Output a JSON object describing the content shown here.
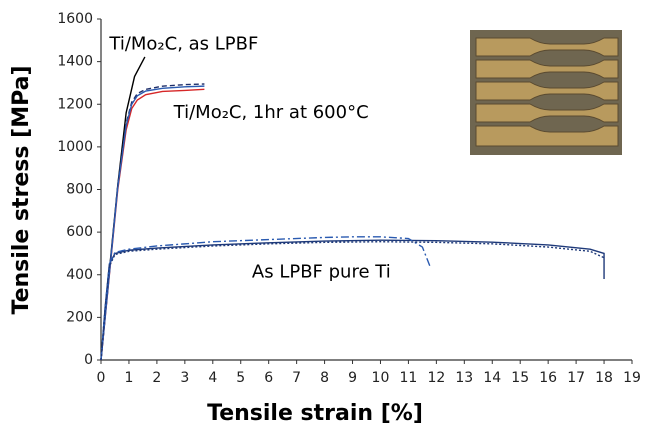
{
  "chart_data": {
    "type": "line",
    "xlabel": "Tensile strain [%]",
    "ylabel": "Tensile stress [MPa]",
    "xlim": [
      0,
      19
    ],
    "xticks": [
      0,
      1,
      2,
      3,
      4,
      5,
      6,
      7,
      8,
      9,
      10,
      11,
      12,
      13,
      14,
      15,
      16,
      17,
      18,
      19
    ],
    "ylim": [
      0,
      1600
    ],
    "yticks": [
      0,
      200,
      400,
      600,
      800,
      1000,
      1200,
      1400,
      1600
    ],
    "annotations": [
      {
        "text": "Ti/Mo₂C, as LPBF",
        "x": 0.3,
        "y": 1480
      },
      {
        "text": "Ti/Mo₂C, 1hr at 600°C",
        "x": 2.6,
        "y": 1160
      },
      {
        "text": "As LPBF pure Ti",
        "x": 5.4,
        "y": 410
      }
    ],
    "series": [
      {
        "color": "#000000",
        "style": "solid",
        "x": [
          0,
          0.3,
          0.6,
          0.9,
          1.2,
          1.57
        ],
        "values": [
          0,
          420,
          820,
          1160,
          1330,
          1422
        ]
      },
      {
        "color": "#d62728",
        "style": "solid",
        "x": [
          0,
          0.3,
          0.6,
          0.9,
          1.1,
          1.3,
          1.6,
          2.2,
          3,
          3.7
        ],
        "values": [
          0,
          400,
          800,
          1080,
          1180,
          1220,
          1245,
          1260,
          1265,
          1270
        ]
      },
      {
        "color": "#1f2f6a",
        "style": "dashed",
        "x": [
          0,
          0.3,
          0.6,
          0.9,
          1.1,
          1.3,
          1.6,
          2.2,
          3,
          3.7
        ],
        "values": [
          0,
          410,
          820,
          1110,
          1210,
          1250,
          1270,
          1285,
          1292,
          1295
        ]
      },
      {
        "color": "#2a5ab0",
        "style": "solid",
        "x": [
          0,
          0.3,
          0.6,
          0.9,
          1.1,
          1.3,
          1.6,
          2.2,
          3,
          3.7
        ],
        "values": [
          0,
          405,
          810,
          1100,
          1200,
          1240,
          1262,
          1275,
          1282,
          1285
        ]
      },
      {
        "color": "#1f3a7a",
        "style": "solid",
        "x": [
          0,
          0.15,
          0.3,
          0.5,
          1,
          2,
          4,
          6,
          8,
          10,
          12,
          14,
          16,
          17.5,
          18,
          18,
          18
        ],
        "values": [
          0,
          250,
          450,
          500,
          515,
          525,
          540,
          550,
          558,
          562,
          560,
          553,
          540,
          520,
          500,
          450,
          380
        ]
      },
      {
        "color": "#2a5ab0",
        "style": "dashdot",
        "x": [
          0,
          0.15,
          0.3,
          0.5,
          1,
          2,
          4,
          6,
          8,
          9,
          10,
          11,
          11.5,
          11.8
        ],
        "values": [
          0,
          250,
          450,
          505,
          520,
          535,
          555,
          565,
          575,
          578,
          578,
          570,
          530,
          430
        ]
      },
      {
        "color": "#1f3a7a",
        "style": "dotted",
        "x": [
          0,
          0.15,
          0.3,
          0.5,
          1,
          2,
          4,
          6,
          8,
          10,
          12,
          14,
          16,
          17.5,
          18
        ],
        "values": [
          0,
          240,
          440,
          495,
          510,
          520,
          535,
          545,
          552,
          555,
          552,
          545,
          530,
          510,
          480
        ]
      }
    ]
  }
}
